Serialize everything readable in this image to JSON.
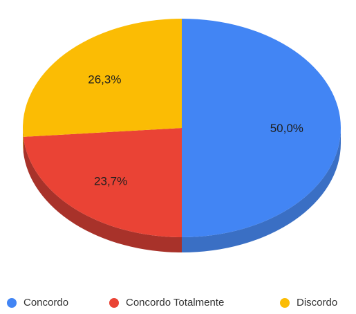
{
  "chart_data": {
    "type": "pie",
    "title": "",
    "slices": [
      {
        "name": "Concordo",
        "value": 50.0,
        "label": "50,0%",
        "color": "#4285F4",
        "side_color": "#3A6FC4"
      },
      {
        "name": "Concordo Totalmente",
        "value": 23.7,
        "label": "23,7%",
        "color": "#EA4335",
        "side_color": "#A8322A"
      },
      {
        "name": "Discordo",
        "value": 26.3,
        "label": "26,3%",
        "color": "#FBBC04",
        "side_color": "#C99603"
      }
    ],
    "legend_position": "bottom",
    "three_d": true
  }
}
